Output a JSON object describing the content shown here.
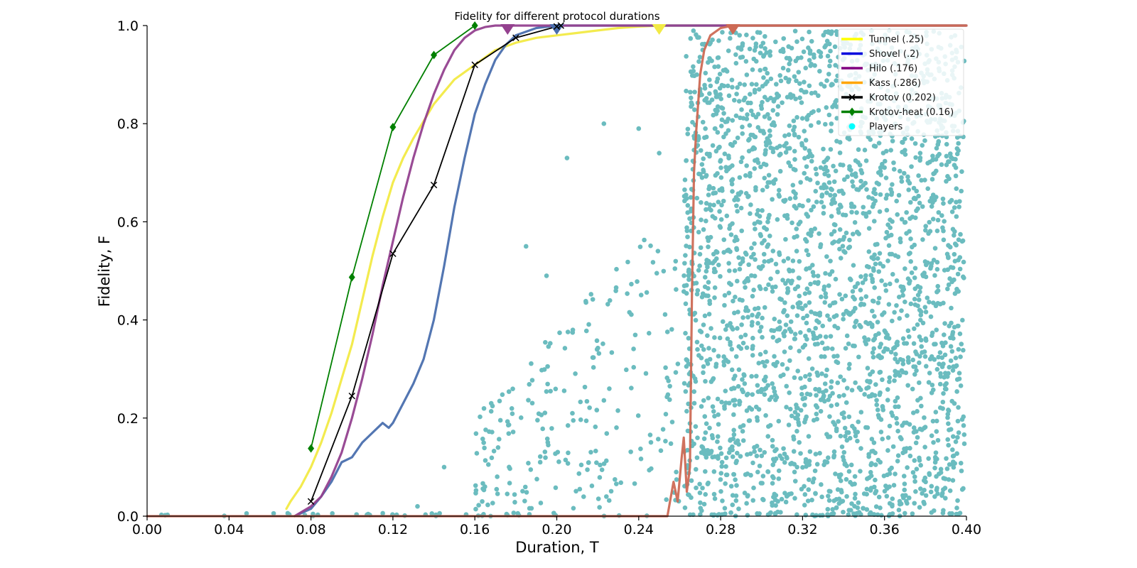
{
  "chart_data": {
    "type": "line",
    "title": "Fidelity for different protocol durations",
    "xlabel": "Duration, T",
    "ylabel": "Fidelity, F",
    "xlim": [
      0.0,
      0.4
    ],
    "ylim": [
      0.0,
      1.0
    ],
    "xticks": [
      "0.00",
      "0.04",
      "0.08",
      "0.12",
      "0.16",
      "0.20",
      "0.24",
      "0.28",
      "0.32",
      "0.36",
      "0.40"
    ],
    "yticks": [
      "0.0",
      "0.2",
      "0.4",
      "0.6",
      "0.8",
      "1.0"
    ],
    "grid": false,
    "legend_position": "top-right",
    "series": [
      {
        "name": "Tunnel (.25)",
        "color": "#f2ea45",
        "legend_color": "#ffff00",
        "kind": "line",
        "x": [
          0.068,
          0.07,
          0.075,
          0.08,
          0.085,
          0.09,
          0.095,
          0.1,
          0.105,
          0.11,
          0.115,
          0.12,
          0.125,
          0.13,
          0.14,
          0.15,
          0.16,
          0.17,
          0.18,
          0.19,
          0.2,
          0.21,
          0.22,
          0.23,
          0.24,
          0.25,
          0.26,
          0.4
        ],
        "y": [
          0.015,
          0.03,
          0.06,
          0.1,
          0.15,
          0.21,
          0.28,
          0.35,
          0.44,
          0.53,
          0.61,
          0.68,
          0.73,
          0.77,
          0.84,
          0.89,
          0.92,
          0.95,
          0.965,
          0.975,
          0.98,
          0.985,
          0.99,
          0.995,
          0.998,
          1.0,
          1.0,
          1.0
        ],
        "marker_x": 0.25
      },
      {
        "name": "Shovel (.2)",
        "color": "#4a6fae",
        "legend_color": "#0000dd",
        "kind": "line",
        "x": [
          0.072,
          0.08,
          0.085,
          0.09,
          0.095,
          0.1,
          0.105,
          0.11,
          0.115,
          0.118,
          0.12,
          0.125,
          0.13,
          0.135,
          0.14,
          0.145,
          0.15,
          0.155,
          0.16,
          0.165,
          0.17,
          0.175,
          0.18,
          0.19,
          0.2,
          0.21,
          0.4
        ],
        "y": [
          0.0,
          0.015,
          0.04,
          0.07,
          0.11,
          0.12,
          0.15,
          0.17,
          0.19,
          0.18,
          0.19,
          0.23,
          0.27,
          0.32,
          0.4,
          0.51,
          0.63,
          0.73,
          0.82,
          0.88,
          0.93,
          0.96,
          0.98,
          0.995,
          1.0,
          1.0,
          1.0
        ],
        "marker_x": 0.2
      },
      {
        "name": "Hilo (.176)",
        "color": "#94418f",
        "legend_color": "#800080",
        "kind": "line",
        "x": [
          0.072,
          0.08,
          0.085,
          0.09,
          0.095,
          0.1,
          0.105,
          0.11,
          0.115,
          0.12,
          0.125,
          0.13,
          0.135,
          0.14,
          0.145,
          0.15,
          0.155,
          0.16,
          0.165,
          0.17,
          0.176,
          0.18,
          0.4
        ],
        "y": [
          0.0,
          0.02,
          0.04,
          0.08,
          0.13,
          0.2,
          0.28,
          0.37,
          0.47,
          0.56,
          0.65,
          0.73,
          0.8,
          0.86,
          0.91,
          0.95,
          0.975,
          0.99,
          0.997,
          1.0,
          1.0,
          1.0,
          1.0
        ],
        "marker_x": 0.176
      },
      {
        "name": "Kass (.286)",
        "color": "#cd6a55",
        "legend_color": "#ffa500",
        "kind": "line",
        "x": [
          0.0,
          0.254,
          0.257,
          0.259,
          0.261,
          0.262,
          0.2635,
          0.265,
          0.266,
          0.267,
          0.268,
          0.27,
          0.272,
          0.275,
          0.28,
          0.286,
          0.4
        ],
        "y": [
          0.0,
          0.0,
          0.07,
          0.03,
          0.12,
          0.16,
          0.05,
          0.1,
          0.45,
          0.7,
          0.78,
          0.9,
          0.95,
          0.98,
          0.995,
          1.0,
          1.0
        ],
        "marker_x": 0.286
      },
      {
        "name": "Krotov (0.202)",
        "color": "#000000",
        "legend_color": "#000000",
        "kind": "line-x",
        "x": [
          0.08,
          0.1,
          0.12,
          0.14,
          0.16,
          0.18,
          0.2,
          0.202
        ],
        "y": [
          0.03,
          0.245,
          0.535,
          0.675,
          0.92,
          0.975,
          0.998,
          1.0
        ]
      },
      {
        "name": "Krotov-heat (0.16)",
        "color": "#008000",
        "legend_color": "#008000",
        "kind": "line-diamond",
        "x": [
          0.08,
          0.1,
          0.12,
          0.14,
          0.16
        ],
        "y": [
          0.138,
          0.487,
          0.793,
          0.94,
          1.0
        ]
      },
      {
        "name": "Players",
        "color": "#6bbcbf",
        "legend_color": "#00ffff",
        "kind": "scatter",
        "x_range": [
          0.0,
          0.4
        ],
        "y_range": [
          0.0,
          1.0
        ],
        "note_points": "dense cloud of player results, sparse below T=0.25 and dense for T between 0.26 and 0.40"
      }
    ]
  }
}
